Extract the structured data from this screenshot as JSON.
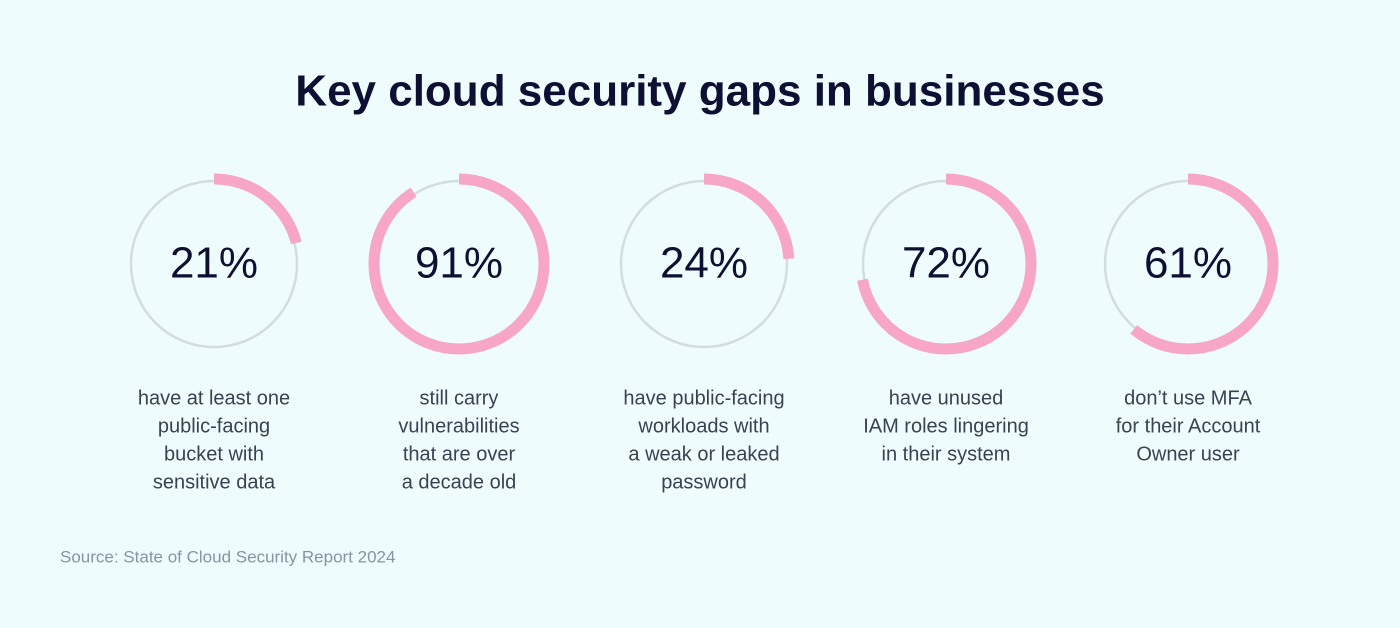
{
  "chart_data": {
    "type": "radial",
    "title": "Key cloud security gaps in businesses",
    "values": [
      21,
      91,
      24,
      72,
      61
    ],
    "value_labels": [
      "21%",
      "91%",
      "24%",
      "72%",
      "61%"
    ],
    "vlim": [
      0,
      100
    ],
    "color": "#f7a6c8",
    "track_color": "#d3dde0",
    "descriptions": [
      [
        "have at least one",
        "public-facing",
        "bucket with",
        "sensitive data"
      ],
      [
        "still carry",
        "vulnerabilities",
        "that are over",
        "a decade old"
      ],
      [
        "have public-facing",
        "workloads with",
        "a weak or leaked",
        "password"
      ],
      [
        "have unused",
        "IAM roles lingering",
        "in their system"
      ],
      [
        "don’t use MFA",
        "for their Account",
        "Owner user"
      ]
    ],
    "source": "Source: State of Cloud Security Report 2024"
  }
}
